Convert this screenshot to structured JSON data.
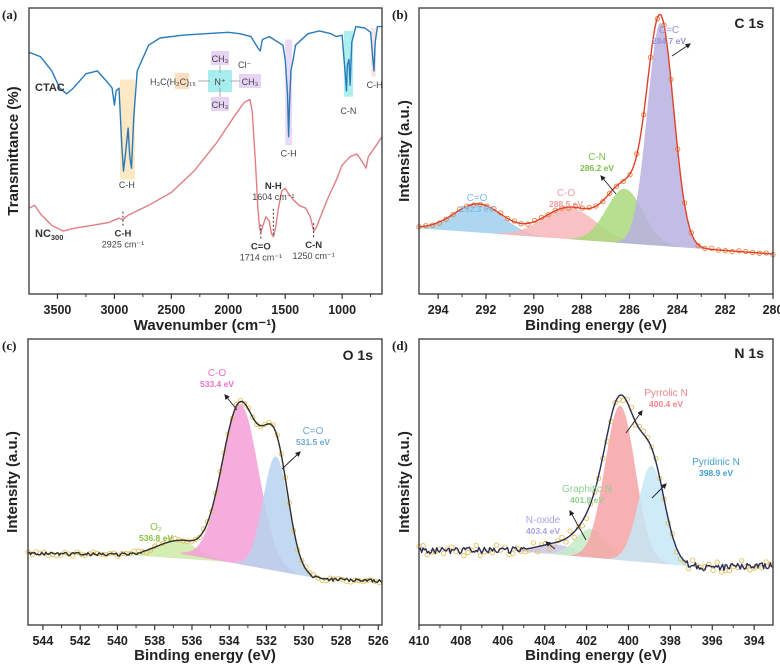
{
  "figure": {
    "panels": [
      "(a)",
      "(b)",
      "(c)",
      "(d)"
    ]
  },
  "chart_data": [
    {
      "id": "a",
      "type": "line",
      "panel_label": "(a)",
      "title": "",
      "xlabel": "Wavenumber (cm⁻¹)",
      "ylabel": "Transmittance (%)",
      "xlim": [
        3750,
        650
      ],
      "x_reversed": true,
      "xticks": [
        3500,
        3000,
        2500,
        2000,
        1500,
        1000
      ],
      "xtick_labels": [
        "3500",
        "3000",
        "2500",
        "2000",
        "1500",
        "1000"
      ],
      "y_ticks_shown": false,
      "series": [
        {
          "name": "CTAC",
          "color": "#2a7ab8",
          "points": [
            [
              3750,
              0.845
            ],
            [
              3650,
              0.83
            ],
            [
              3550,
              0.78
            ],
            [
              3480,
              0.72
            ],
            [
              3420,
              0.7
            ],
            [
              3360,
              0.72
            ],
            [
              3250,
              0.77
            ],
            [
              3150,
              0.78
            ],
            [
              3060,
              0.74
            ],
            [
              3020,
              0.72
            ],
            [
              3000,
              0.66
            ],
            [
              2985,
              0.71
            ],
            [
              2960,
              0.72
            ],
            [
              2935,
              0.52
            ],
            [
              2920,
              0.43
            ],
            [
              2900,
              0.5
            ],
            [
              2880,
              0.58
            ],
            [
              2865,
              0.48
            ],
            [
              2850,
              0.44
            ],
            [
              2830,
              0.62
            ],
            [
              2800,
              0.78
            ],
            [
              2700,
              0.87
            ],
            [
              2600,
              0.895
            ],
            [
              2400,
              0.905
            ],
            [
              2200,
              0.91
            ],
            [
              2000,
              0.915
            ],
            [
              1900,
              0.91
            ],
            [
              1800,
              0.9
            ],
            [
              1740,
              0.86
            ],
            [
              1720,
              0.85
            ],
            [
              1700,
              0.89
            ],
            [
              1640,
              0.9
            ],
            [
              1520,
              0.87
            ],
            [
              1500,
              0.82
            ],
            [
              1480,
              0.7
            ],
            [
              1470,
              0.55
            ],
            [
              1462,
              0.66
            ],
            [
              1450,
              0.78
            ],
            [
              1430,
              0.82
            ],
            [
              1410,
              0.87
            ],
            [
              1300,
              0.91
            ],
            [
              1200,
              0.92
            ],
            [
              1100,
              0.91
            ],
            [
              1050,
              0.9
            ],
            [
              1000,
              0.905
            ],
            [
              975,
              0.78
            ],
            [
              962,
              0.71
            ],
            [
              955,
              0.8
            ],
            [
              940,
              0.82
            ],
            [
              930,
              0.73
            ],
            [
              915,
              0.88
            ],
            [
              880,
              0.935
            ],
            [
              800,
              0.93
            ],
            [
              750,
              0.915
            ],
            [
              730,
              0.82
            ],
            [
              720,
              0.78
            ],
            [
              710,
              0.88
            ],
            [
              690,
              0.935
            ],
            [
              650,
              0.935
            ]
          ]
        },
        {
          "name": "NC₃₀₀",
          "color": "#e07f85",
          "points": [
            [
              3750,
              0.3
            ],
            [
              3700,
              0.31
            ],
            [
              3650,
              0.28
            ],
            [
              3550,
              0.24
            ],
            [
              3450,
              0.22
            ],
            [
              3350,
              0.23
            ],
            [
              3200,
              0.24
            ],
            [
              3050,
              0.25
            ],
            [
              2960,
              0.265
            ],
            [
              2925,
              0.26
            ],
            [
              2880,
              0.275
            ],
            [
              2700,
              0.31
            ],
            [
              2500,
              0.355
            ],
            [
              2300,
              0.43
            ],
            [
              2100,
              0.53
            ],
            [
              1950,
              0.62
            ],
            [
              1860,
              0.67
            ],
            [
              1810,
              0.68
            ],
            [
              1790,
              0.64
            ],
            [
              1760,
              0.45
            ],
            [
              1740,
              0.3
            ],
            [
              1725,
              0.23
            ],
            [
              1714,
              0.215
            ],
            [
              1695,
              0.24
            ],
            [
              1670,
              0.27
            ],
            [
              1640,
              0.255
            ],
            [
              1620,
              0.21
            ],
            [
              1604,
              0.2
            ],
            [
              1585,
              0.23
            ],
            [
              1560,
              0.3
            ],
            [
              1530,
              0.36
            ],
            [
              1500,
              0.37
            ],
            [
              1470,
              0.35
            ],
            [
              1430,
              0.33
            ],
            [
              1380,
              0.31
            ],
            [
              1320,
              0.3
            ],
            [
              1280,
              0.27
            ],
            [
              1250,
              0.22
            ],
            [
              1230,
              0.23
            ],
            [
              1180,
              0.28
            ],
            [
              1120,
              0.34
            ],
            [
              1050,
              0.4
            ],
            [
              1000,
              0.45
            ],
            [
              930,
              0.48
            ],
            [
              870,
              0.49
            ],
            [
              820,
              0.46
            ],
            [
              790,
              0.44
            ],
            [
              770,
              0.48
            ],
            [
              700,
              0.52
            ],
            [
              650,
              0.55
            ]
          ]
        }
      ],
      "highlight_bands": [
        {
          "range": [
            2950,
            2820
          ],
          "y": [
            0.4,
            0.75
          ],
          "color": "#fbe5b8",
          "label": "C-H"
        },
        {
          "range": [
            1500,
            1440
          ],
          "y": [
            0.52,
            0.89
          ],
          "color": "#e7d3f4",
          "label": "C-H"
        },
        {
          "range": [
            985,
            905
          ],
          "y": [
            0.69,
            0.92
          ],
          "color": "#9fecec",
          "label": "C-N"
        },
        {
          "range": [
            745,
            705
          ],
          "y": [
            0.76,
            0.93
          ],
          "color": "#f8dede",
          "label": "C-H"
        }
      ],
      "annotations": [
        {
          "text": "CTAC",
          "x": 3700,
          "y": 0.71,
          "kind": "sample"
        },
        {
          "text": "NC",
          "sub": "300",
          "x": 3700,
          "y": 0.2,
          "kind": "sample"
        },
        {
          "text": "C-H",
          "x": 2890,
          "y": 0.37,
          "kind": "band"
        },
        {
          "text": "C-H",
          "x": 1470,
          "y": 0.48,
          "kind": "band"
        },
        {
          "text": "C-N",
          "x": 945,
          "y": 0.63,
          "kind": "band"
        },
        {
          "text": "C-H",
          "x": 715,
          "y": 0.72,
          "kind": "band"
        },
        {
          "text": "C-H",
          "wavenumber": "2925 cm⁻¹",
          "x": 2925,
          "y": 0.26,
          "kind": "peak-below"
        },
        {
          "text": "C=O",
          "wavenumber": "1714 cm⁻¹",
          "x": 1714,
          "y": 0.215,
          "kind": "peak-below"
        },
        {
          "text": "N-H",
          "wavenumber": "1604 cm⁻¹",
          "x": 1604,
          "y": 0.2,
          "kind": "peak-above"
        },
        {
          "text": "C-N",
          "wavenumber": "1250 cm⁻¹",
          "x": 1250,
          "y": 0.22,
          "kind": "peak-below"
        }
      ],
      "structure": {
        "chain": "H₃C(H₂C)₁₅",
        "center": "N⁺",
        "methyl": "CH₃",
        "counter_ion": "Cl⁻"
      }
    },
    {
      "id": "b",
      "type": "area",
      "panel_label": "(b)",
      "title": "C 1s",
      "xlabel": "Binding energy (eV)",
      "ylabel": "Intensity (a.u.)",
      "xlim": [
        294.8,
        280
      ],
      "x_reversed": true,
      "xticks": [
        294,
        292,
        290,
        288,
        286,
        284,
        282,
        280
      ],
      "xtick_labels": [
        "294",
        "292",
        "290",
        "288",
        "286",
        "284",
        "282",
        "280"
      ],
      "baseline": [
        [
          294.8,
          0.23
        ],
        [
          280,
          0.14
        ]
      ],
      "envelope_color": "#e0402a",
      "points_color": "#e8833a",
      "components": [
        {
          "name": "C=O",
          "center": 292.3,
          "label": "292.3 eV",
          "height": 0.1,
          "fwhm": 2.4,
          "color": "#9fd0ef",
          "text_color": "#7fbce4"
        },
        {
          "name": "C-O",
          "center": 288.5,
          "label": "288.5 eV",
          "height": 0.11,
          "fwhm": 2.6,
          "color": "#f7b7ba",
          "text_color": "#f19ca2"
        },
        {
          "name": "C-N",
          "center": 286.2,
          "label": "286.2 eV",
          "height": 0.19,
          "fwhm": 1.8,
          "color": "#a9d97b",
          "text_color": "#7cc04a"
        },
        {
          "name": "C=C",
          "center": 284.7,
          "label": "284.7 eV",
          "height": 0.78,
          "fwhm": 1.3,
          "color": "#b8b1e0",
          "text_color": "#9a90d0"
        }
      ]
    },
    {
      "id": "c",
      "type": "area",
      "panel_label": "(c)",
      "title": "O 1s",
      "xlabel": "Binding energy (eV)",
      "ylabel": "Intensity (a.u.)",
      "xlim": [
        544.8,
        525.8
      ],
      "x_reversed": true,
      "xticks": [
        544,
        542,
        540,
        538,
        536,
        534,
        532,
        530,
        528,
        526
      ],
      "xtick_labels": [
        "544",
        "542",
        "540",
        "538",
        "536",
        "534",
        "532",
        "530",
        "528",
        "526"
      ],
      "baseline": [
        [
          544.8,
          0.25
        ],
        [
          539,
          0.245
        ],
        [
          536.5,
          0.25
        ],
        [
          529,
          0.16
        ],
        [
          525.8,
          0.155
        ]
      ],
      "envelope_color": "#2e2e2e",
      "points_color": "#e3c15c",
      "components": [
        {
          "name": "O₂",
          "center": 536.8,
          "label": "536.8 eV",
          "height": 0.045,
          "fwhm": 2.6,
          "color": "#cdeaa6",
          "text_color": "#86c045"
        },
        {
          "name": "C-O",
          "center": 533.4,
          "label": "533.4 eV",
          "height": 0.56,
          "fwhm": 2.3,
          "color": "#f59fd7",
          "text_color": "#ee6fc4"
        },
        {
          "name": "C=O",
          "center": 531.5,
          "label": "531.5 eV",
          "height": 0.4,
          "fwhm": 1.6,
          "color": "#b6d4ee",
          "text_color": "#6fa7d8"
        }
      ]
    },
    {
      "id": "d",
      "type": "area",
      "panel_label": "(d)",
      "title": "N 1s",
      "xlabel": "Binding energy (eV)",
      "ylabel": "Intensity (a.u.)",
      "xlim": [
        410,
        393.1
      ],
      "x_reversed": true,
      "xticks": [
        410,
        408,
        406,
        404,
        402,
        400,
        398,
        396,
        394
      ],
      "xtick_labels": [
        "410",
        "408",
        "406",
        "404",
        "402",
        "400",
        "398",
        "396",
        "394"
      ],
      "baseline": [
        [
          410,
          0.26
        ],
        [
          405.5,
          0.26
        ],
        [
          396.2,
          0.2
        ],
        [
          393.1,
          0.21
        ]
      ],
      "envelope_color": "#2b2d55",
      "points_color": "#e3c15c",
      "components": [
        {
          "name": "N-oxide",
          "center": 403.4,
          "label": "403.4 eV",
          "height": 0.035,
          "fwhm": 2.2,
          "color": "#c9c6f0",
          "text_color": "#a9a2e0"
        },
        {
          "name": "Graphitic N",
          "center": 401.8,
          "label": "401.8 eV",
          "height": 0.1,
          "fwhm": 1.7,
          "color": "#c5ecc6",
          "text_color": "#8fd08f"
        },
        {
          "name": "Pyrrolic N",
          "center": 400.4,
          "label": "400.4 eV",
          "height": 0.54,
          "fwhm": 1.7,
          "color": "#f6a3a4",
          "text_color": "#ee8485"
        },
        {
          "name": "Pyridinic N",
          "center": 398.9,
          "label": "398.9 eV",
          "height": 0.34,
          "fwhm": 1.5,
          "color": "#c7e8f6",
          "text_color": "#3f9fd0"
        }
      ]
    }
  ]
}
